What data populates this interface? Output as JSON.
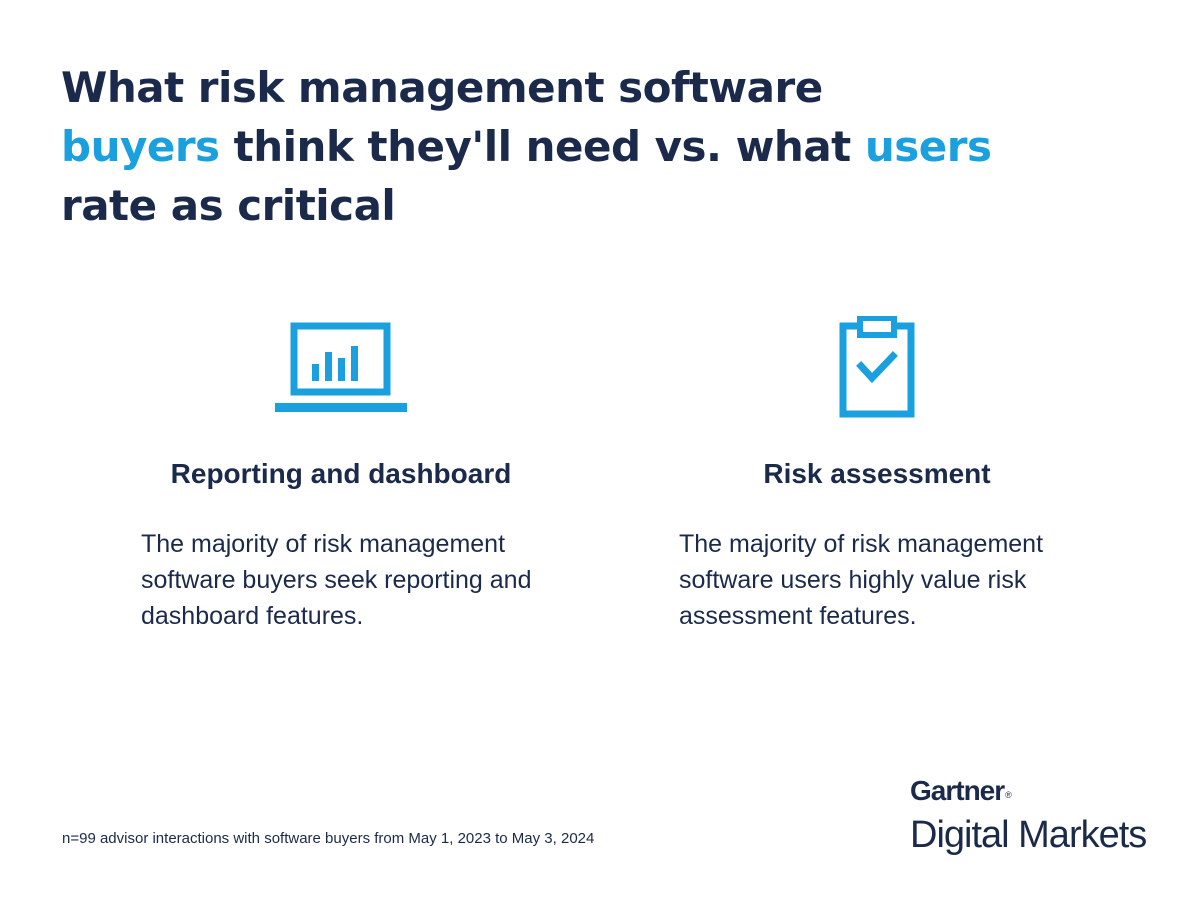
{
  "headline": {
    "line1": "What risk management software",
    "line2_accent1": "buyers",
    "line2_mid": " think they'll need vs. what ",
    "line2_accent2": "users",
    "line3": "rate as critical"
  },
  "colors": {
    "navy": "#1b2a4a",
    "accent_blue": "#1aa0de"
  },
  "features": [
    {
      "icon": "laptop-bar-chart-icon",
      "title": "Reporting and dashboard",
      "description": "The majority of risk management software buyers seek reporting and dashboard features."
    },
    {
      "icon": "clipboard-check-icon",
      "title": "Risk assessment",
      "description": "The majority of risk management software users highly value risk assessment features."
    }
  ],
  "footnote": "n=99 advisor interactions with software buyers from May 1, 2023 to May 3, 2024",
  "logo": {
    "brand": "Gartner",
    "registered_mark": "®",
    "subtitle": "Digital Markets"
  }
}
